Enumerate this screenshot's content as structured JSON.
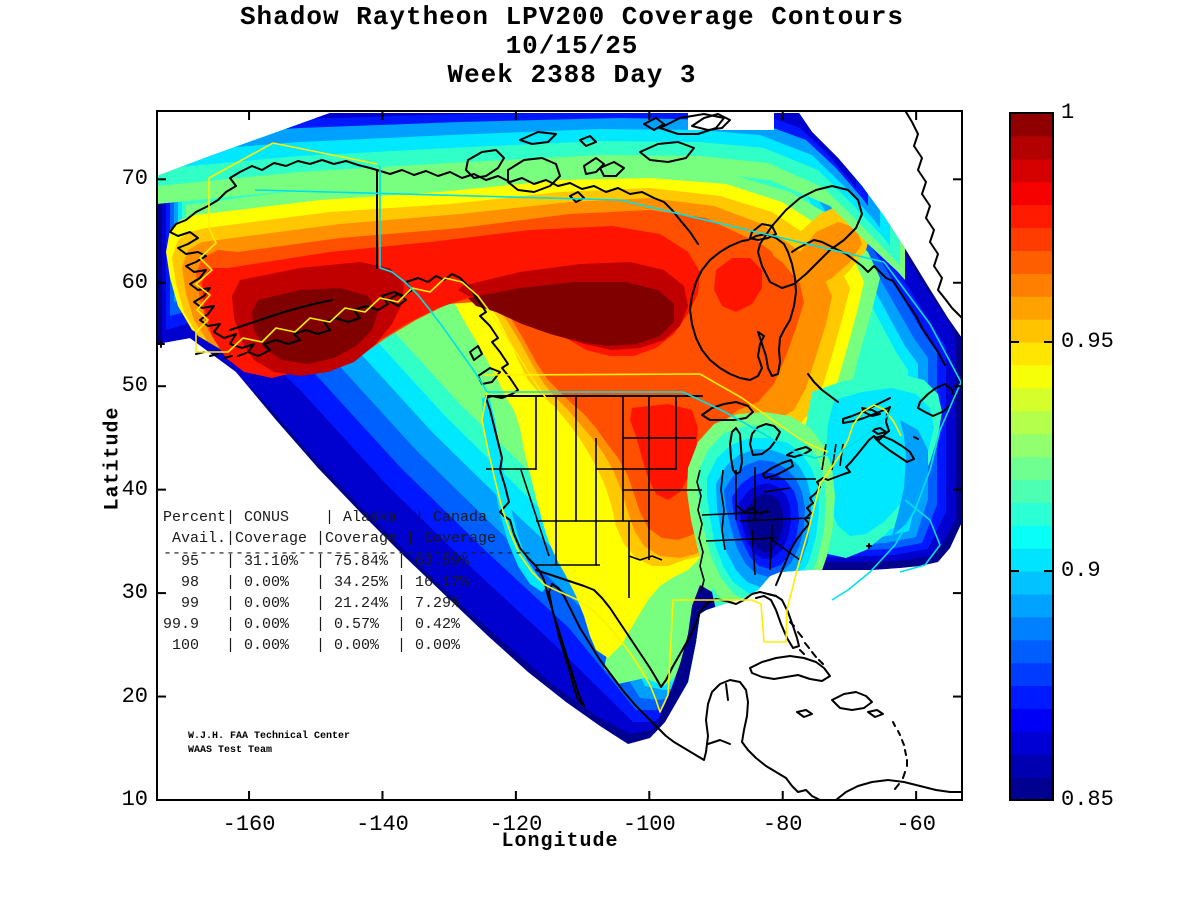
{
  "title": {
    "line1": "Shadow Raytheon LPV200 Coverage Contours",
    "line2": "10/15/25",
    "line3": "Week 2388 Day 3"
  },
  "axes": {
    "xlabel": "Longitude",
    "ylabel": "Latitude",
    "xticks": [
      -160,
      -140,
      -120,
      -100,
      -80,
      -60
    ],
    "yticks": [
      10,
      20,
      30,
      40,
      50,
      60,
      70
    ]
  },
  "colorbar": {
    "min": 0.85,
    "max": 1.0,
    "n_bands": 30,
    "tick_values": [
      1,
      0.95,
      0.9,
      0.85
    ],
    "tick_labels": [
      "1",
      "0.95",
      "0.9",
      "0.85"
    ]
  },
  "coverage_table": {
    "lines": [
      "Percent| CONUS    | Alaska  | Canada",
      " Avail.|Coverage |Coverage | Coverage",
      "-----------------------------------------",
      "  95   | 31.10%  | 75.84% | 63.59%",
      "  98   | 0.00%   | 34.25% | 16.17%",
      "  99   | 0.00%   | 21.24% | 7.29%",
      "99.9   | 0.00%   | 0.57%  | 0.42%",
      " 100   | 0.00%   | 0.00%  | 0.00%"
    ]
  },
  "attribution": {
    "line1": "W.J.H. FAA Technical Center",
    "line2": "WAAS Test Team"
  },
  "chart_data": {
    "type": "heatmap",
    "subtype": "filled-contour-map",
    "title": "Shadow Raytheon LPV200 Coverage Contours 10/15/25 Week 2388 Day 3",
    "xlabel": "Longitude",
    "ylabel": "Latitude",
    "xlim": [
      -173.8,
      -53.0
    ],
    "ylim": [
      10,
      76.3
    ],
    "colormap": "jet",
    "colorbar_range": [
      0.85,
      1.0
    ],
    "colorbar_ticks": [
      0.85,
      0.9,
      0.95,
      1.0
    ],
    "contour_levels": "0.85 to 1.00 in 0.005 steps",
    "high_regions": [
      {
        "region": "Gulf of Alaska / Alaska Peninsula",
        "approx_value": 1.0
      },
      {
        "region": "Western-central Canada (Yukon to Saskatchewan)",
        "approx_value": 1.0
      },
      {
        "region": "Hudson Bay / northern Quebec",
        "approx_value": 0.97
      },
      {
        "region": "Baffin Island",
        "approx_value": 0.96
      },
      {
        "region": "Northern plains corridor (Dakotas-Iowa)",
        "approx_value": 0.965
      }
    ],
    "low_regions": [
      {
        "region": "Southeastern US (Tennessee/Alabama/Georgia)",
        "approx_value": 0.85
      },
      {
        "region": "Atlantic seaboard edge",
        "approx_value": 0.85
      },
      {
        "region": "Pacific offshore edge and Mexico taper",
        "approx_value": 0.85
      }
    ],
    "availability_table": {
      "columns": [
        "Percent Avail.",
        "CONUS Coverage",
        "Alaska Coverage",
        "Canada Coverage"
      ],
      "rows": [
        [
          "95",
          "31.10%",
          "75.84%",
          "63.59%"
        ],
        [
          "98",
          "0.00%",
          "34.25%",
          "16.17%"
        ],
        [
          "99",
          "0.00%",
          "21.24%",
          "7.29%"
        ],
        [
          "99.9",
          "0.00%",
          "0.57%",
          "0.42%"
        ],
        [
          "100",
          "0.00%",
          "0.00%",
          "0.00%"
        ]
      ]
    },
    "overlays": [
      "coastlines-black",
      "us-state-borders-black",
      "conus-service-boundary-yellow",
      "alaska-service-boundary-yellow",
      "canada-service-boundary-cyan"
    ]
  }
}
